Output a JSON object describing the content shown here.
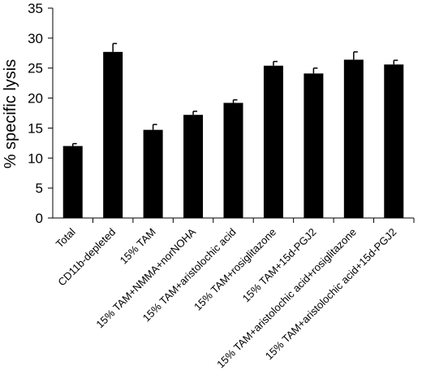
{
  "chart_data": {
    "type": "bar",
    "title": "",
    "xlabel": "",
    "ylabel": "% specific lysis",
    "ylim": [
      0,
      35
    ],
    "yticks": [
      0,
      5,
      10,
      15,
      20,
      25,
      30,
      35
    ],
    "grid": false,
    "bar_color": "#000000",
    "categories": [
      "Total",
      "CD11b-depleted",
      "15% TAM",
      "15% TAM+NMMA+norNOHA",
      "15% TAM+aristolochic acid",
      "15% TAM+rosiglitazone",
      "15% TAM+15d-PGJ2",
      "15% TAM+aristolochic acid+rosiglitazone",
      "15% TAM+aristolochic acid+15d-PGJ2"
    ],
    "values": [
      12.0,
      27.7,
      14.7,
      17.2,
      19.2,
      25.4,
      24.1,
      26.4,
      25.6
    ],
    "errors": [
      0.4,
      1.4,
      0.9,
      0.6,
      0.5,
      0.7,
      0.9,
      1.3,
      0.7
    ]
  }
}
